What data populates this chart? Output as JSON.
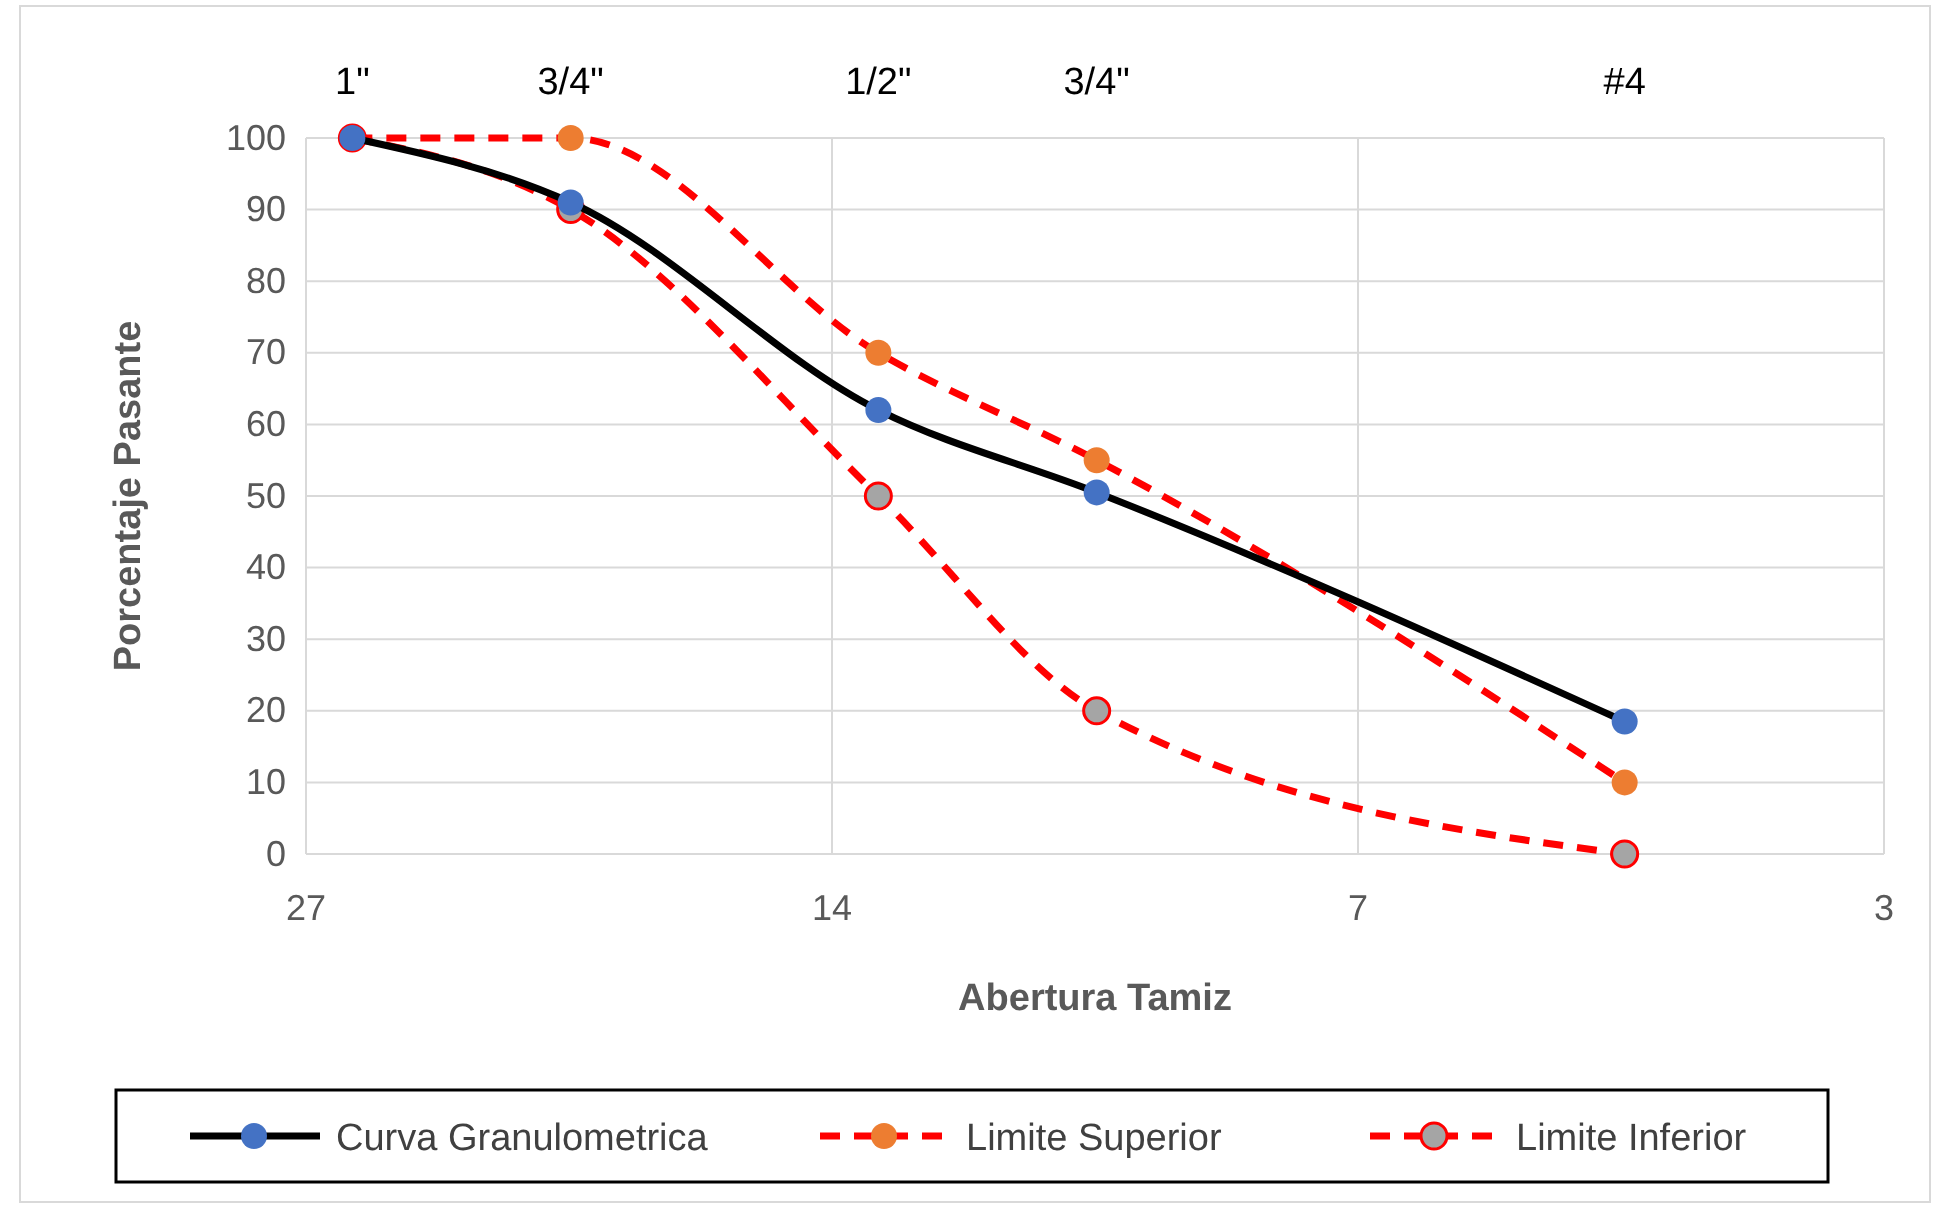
{
  "chart_data": {
    "type": "line",
    "xlabel": "Abertura Tamiz",
    "ylabel": "Porcentaje Pasante",
    "x": [
      25.4,
      19.05,
      12.7,
      9.525,
      4.75
    ],
    "series": [
      {
        "name": "Curva Granulometrica",
        "color": "#000000",
        "colors": [
          "#4472c4",
          "#4472c4",
          "#4472c4",
          "#4472c4",
          "#4472c4"
        ],
        "line_style": "solid",
        "values": [
          100,
          91,
          62,
          50.5,
          18.5
        ]
      },
      {
        "name": "Limite Superior",
        "color": "#ff0000",
        "colors": [
          "#ed7d31",
          "#ed7d31",
          "#ed7d31",
          "#ed7d31",
          "#ed7d31"
        ],
        "line_style": "dashed",
        "values": [
          100,
          100,
          70,
          55,
          10
        ]
      },
      {
        "name": "Limite Inferior",
        "color": "#ff0000",
        "colors": [
          "#a5a5a5",
          "#a5a5a5",
          "#a5a5a5",
          "#a5a5a5",
          "#a5a5a5"
        ],
        "line_style": "dashed",
        "values": [
          100,
          90,
          50,
          20,
          0
        ]
      }
    ],
    "log": "x",
    "xlim": [
      27,
      3.375
    ],
    "xticks": [
      {
        "value": 27,
        "label": "27"
      },
      {
        "value": 13.5,
        "label": "14"
      },
      {
        "value": 6.75,
        "label": "7"
      },
      {
        "value": 3.375,
        "label": "3"
      }
    ],
    "ylim": [
      0,
      100
    ],
    "yticks": [
      0,
      10,
      20,
      30,
      40,
      50,
      60,
      70,
      80,
      90,
      100
    ],
    "grid": true,
    "legend": "bottom",
    "marker": "circle",
    "annotations": [
      "1\"",
      "3/4\"",
      "1/2\"",
      "3/4\"",
      "#4"
    ]
  }
}
